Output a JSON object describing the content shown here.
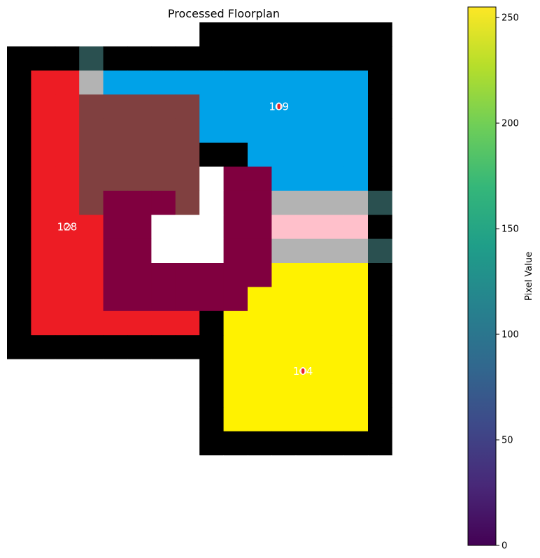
{
  "chart_data": {
    "type": "heatmap",
    "title": "Processed Floorplan",
    "grid": false,
    "axes_visible": false,
    "image": {
      "rows": 19,
      "cols": 16,
      "colors": {
        "w": "#ffffff",
        "K": "#000000",
        "D": "#2a5050",
        "G": "#b3b3b3",
        "R": "#ed1c24",
        "B": "#00a2e8",
        "N": "#804040",
        "M": "#80003f",
        "P": "#ffc0cb",
        "Y": "#fff200"
      },
      "grid_rows": [
        "wwwwwwwwKKKKKKKK",
        "KKKDKKKKKKKKKKKK",
        "KRRGBBBBBBBBBBBK",
        "KRRNNNNNBBBBBBBK",
        "KRRNNNNNBBBBBBBK",
        "KRRNNNNNKKBBBBBK",
        "KRRNNNNNwMMBBBBK",
        "KRRNMMMNwMMGGGGD",
        "KRRRMMwwwMMPPPPK",
        "KRRRMMwwwMMGGGGD",
        "KRRRMMMMMMMYYYYK",
        "KRRRMMMMMMYYYYYK",
        "KRRRRRRRKYYYYYYK",
        "KKKKKKKKKYYYYYYK",
        "wwwwwwwwKYYYYYYK",
        "wwwwwwwwKYYYYYYK",
        "wwwwwwwwKYYYYYYK",
        "wwwwwwwwKKKKKKKK",
        "wwwwwwwwwwwwwwww"
      ]
    },
    "room_labels": [
      {
        "text": "109",
        "col": 11.3,
        "row": 3.5,
        "marker_color": "#e8242a"
      },
      {
        "text": "128",
        "col": 2.5,
        "row": 8.5,
        "marker_color": "#e8242a"
      },
      {
        "text": "104",
        "col": 12.3,
        "row": 14.5,
        "marker_color": "#e8242a"
      }
    ],
    "colorbar": {
      "label": "Pixel Value",
      "range": [
        0,
        255
      ],
      "ticks": [
        0,
        50,
        100,
        150,
        200,
        250
      ],
      "colormap": "viridis",
      "colormap_stops": [
        "#440154",
        "#482878",
        "#3e4989",
        "#31688e",
        "#26828e",
        "#1f9e89",
        "#35b779",
        "#6ece58",
        "#b5de2b",
        "#fde725"
      ]
    }
  }
}
